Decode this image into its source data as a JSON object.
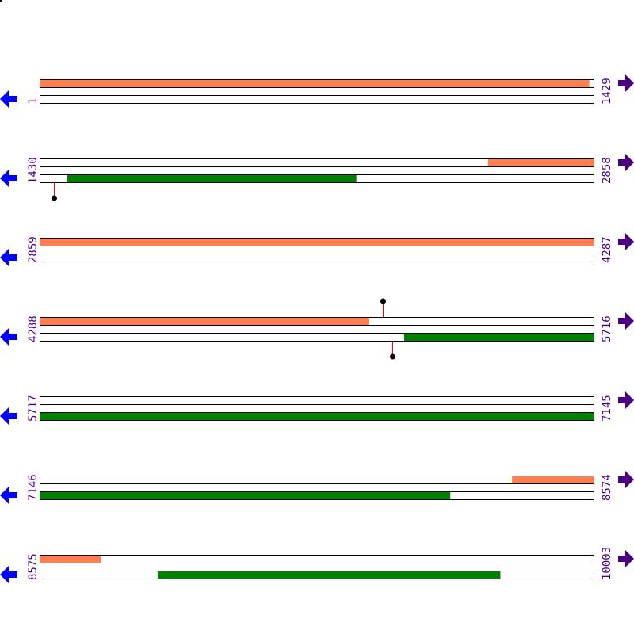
{
  "colors": {
    "top_strand": "#ff7f50",
    "bottom_strand": "#008000",
    "line": "#000000",
    "label": "#4b0082",
    "left_arrow": "#0000ff",
    "right_arrow": "#4b0082",
    "marker_stem": "#ff0000",
    "marker_dot": "#000000"
  },
  "icons": {
    "left": "arrow-left-icon",
    "right": "arrow-right-icon"
  },
  "rows": [
    {
      "start": 1,
      "end": 1429,
      "start_label": "1",
      "end_label": "1429"
    },
    {
      "start": 1430,
      "end": 2858,
      "start_label": "1430",
      "end_label": "2858"
    },
    {
      "start": 2859,
      "end": 4287,
      "start_label": "2859",
      "end_label": "4287"
    },
    {
      "start": 4288,
      "end": 5716,
      "start_label": "4288",
      "end_label": "5716"
    },
    {
      "start": 5717,
      "end": 7145,
      "start_label": "5717",
      "end_label": "7145"
    },
    {
      "start": 7146,
      "end": 8574,
      "start_label": "7146",
      "end_label": "8574"
    },
    {
      "start": 8575,
      "end": 10003,
      "start_label": "8575",
      "end_label": "10003"
    }
  ],
  "features": [
    {
      "strand": "top",
      "from": 1,
      "to": 1416
    },
    {
      "strand": "top",
      "from": 2585,
      "to": 5135
    },
    {
      "strand": "bottom",
      "from": 1501,
      "to": 2245
    },
    {
      "strand": "bottom",
      "from": 5227,
      "to": 8203
    },
    {
      "strand": "top",
      "from": 8363,
      "to": 8732
    },
    {
      "strand": "bottom",
      "from": 8879,
      "to": 9761
    }
  ],
  "markers": [
    {
      "strand": "bottom",
      "pos": 1467
    },
    {
      "strand": "top",
      "pos": 5172
    },
    {
      "strand": "bottom",
      "pos": 5196
    }
  ]
}
